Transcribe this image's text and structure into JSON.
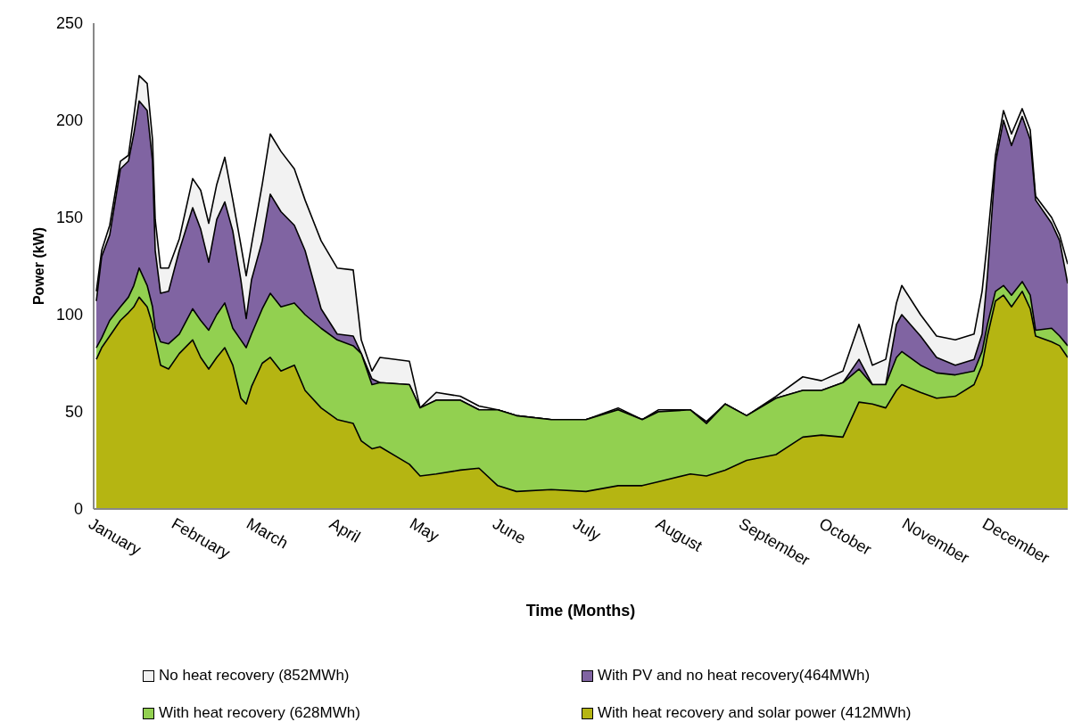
{
  "chart_data": {
    "type": "area",
    "ylabel": "Power (kW)",
    "xlabel": "Time (Months)",
    "xlim": [
      "--01-01",
      "--12-31"
    ],
    "xticks": [
      {
        "value": "--01-01",
        "label": "January"
      },
      {
        "value": "--02-01",
        "label": "February"
      },
      {
        "value": "--03-01",
        "label": "March"
      },
      {
        "value": "--04-01",
        "label": "April"
      },
      {
        "value": "--05-01",
        "label": "May"
      },
      {
        "value": "--06-01",
        "label": "June"
      },
      {
        "value": "--07-01",
        "label": "July"
      },
      {
        "value": "--08-01",
        "label": "August"
      },
      {
        "value": "--09-01",
        "label": "September"
      },
      {
        "value": "--10-01",
        "label": "October"
      },
      {
        "value": "--11-01",
        "label": "November"
      },
      {
        "value": "--12-01",
        "label": "December"
      }
    ],
    "ylim": [
      0,
      250
    ],
    "yticks": [
      0,
      50,
      100,
      150,
      200,
      250
    ],
    "grid": false,
    "legend": "bottom",
    "x": [
      "--01-02",
      "--01-04",
      "--01-07",
      "--01-11",
      "--01-14",
      "--01-16",
      "--01-18",
      "--01-21",
      "--01-23",
      "--01-24",
      "--01-26",
      "--01-29",
      "--02-02",
      "--02-07",
      "--02-10",
      "--02-13",
      "--02-16",
      "--02-19",
      "--02-22",
      "--02-25",
      "--02-27",
      "--03-01",
      "--03-05",
      "--03-08",
      "--03-12",
      "--03-17",
      "--03-21",
      "--03-27",
      "--04-02",
      "--04-08",
      "--04-11",
      "--04-15",
      "--04-18",
      "--04-29",
      "--05-03",
      "--05-09",
      "--05-18",
      "--05-25",
      "--06-01",
      "--06-08",
      "--06-21",
      "--07-04",
      "--07-16",
      "--07-25",
      "--07-31",
      "--08-12",
      "--08-18",
      "--08-25",
      "--09-02",
      "--09-13",
      "--09-23",
      "--09-30",
      "--10-08",
      "--10-14",
      "--10-19",
      "--10-24",
      "--10-28",
      "--10-30",
      "--11-06",
      "--11-12",
      "--11-19",
      "--11-26",
      "--11-29",
      "--12-01",
      "--12-04",
      "--12-07",
      "--12-10",
      "--12-14",
      "--12-17",
      "--12-19",
      "--12-25",
      "--12-28",
      "--12-31"
    ],
    "series": [
      {
        "name": "No heat recovery (852MWh)",
        "color": "#f2f2f2",
        "values": [
          112,
          133,
          146,
          179,
          182,
          202,
          223,
          219,
          190,
          149,
          124,
          124,
          139,
          170,
          164,
          147,
          167,
          181,
          159,
          136,
          120,
          136,
          167,
          193,
          184,
          175,
          159,
          138,
          124,
          123,
          87,
          71,
          78,
          76,
          52,
          60,
          58,
          53,
          51,
          48,
          46,
          46,
          52,
          46,
          51,
          51,
          45,
          54,
          48,
          58,
          68,
          66,
          71,
          95,
          74,
          77,
          106,
          115,
          100,
          89,
          87,
          90,
          112,
          138,
          182,
          205,
          193,
          206,
          195,
          161,
          150,
          141,
          126
        ]
      },
      {
        "name": "With PV and no heat recovery(464MWh)",
        "color": "#8064a2",
        "values": [
          107,
          130,
          141,
          175,
          179,
          193,
          210,
          205,
          179,
          133,
          111,
          112,
          133,
          155,
          144,
          127,
          149,
          158,
          143,
          118,
          98,
          118,
          138,
          162,
          153,
          146,
          133,
          103,
          90,
          89,
          80,
          67,
          65,
          64,
          52,
          56,
          56,
          51,
          51,
          48,
          46,
          46,
          51,
          46,
          50,
          51,
          44,
          54,
          48,
          57,
          61,
          61,
          65,
          77,
          64,
          64,
          95,
          100,
          89,
          78,
          74,
          77,
          90,
          120,
          178,
          200,
          187,
          202,
          190,
          159,
          147,
          138,
          116
        ]
      },
      {
        "name": "With heat recovery (628MWh)",
        "color": "#92d050",
        "values": [
          83,
          88,
          97,
          104,
          109,
          115,
          124,
          115,
          104,
          93,
          86,
          85,
          90,
          103,
          97,
          92,
          100,
          106,
          93,
          87,
          83,
          90,
          103,
          111,
          104,
          106,
          100,
          93,
          87,
          84,
          80,
          64,
          65,
          64,
          52,
          56,
          56,
          51,
          51,
          48,
          46,
          46,
          51,
          46,
          50,
          51,
          44,
          54,
          48,
          57,
          61,
          61,
          65,
          72,
          64,
          64,
          78,
          81,
          74,
          70,
          69,
          71,
          81,
          95,
          112,
          115,
          110,
          117,
          110,
          92,
          93,
          89,
          84
        ]
      },
      {
        "name": "With heat recovery and solar power (412MWh)",
        "color": "#b5b512",
        "values": [
          77,
          83,
          89,
          97,
          101,
          104,
          109,
          104,
          95,
          87,
          74,
          72,
          80,
          87,
          78,
          72,
          78,
          83,
          74,
          57,
          54,
          63,
          75,
          78,
          71,
          74,
          61,
          52,
          46,
          44,
          35,
          31,
          32,
          23,
          17,
          18,
          20,
          21,
          12,
          9,
          10,
          9,
          12,
          12,
          14,
          18,
          17,
          20,
          25,
          28,
          37,
          38,
          37,
          55,
          54,
          52,
          61,
          64,
          60,
          57,
          58,
          64,
          74,
          89,
          107,
          110,
          104,
          112,
          103,
          89,
          86,
          84,
          78
        ]
      }
    ]
  }
}
